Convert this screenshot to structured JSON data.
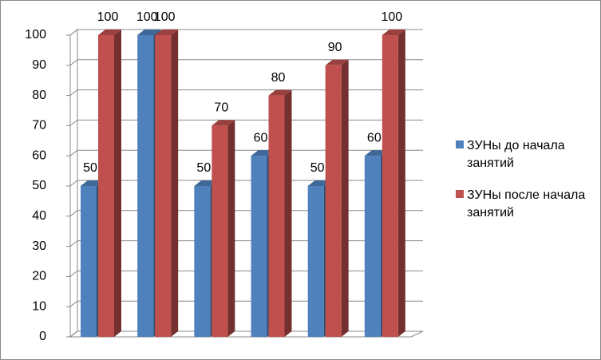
{
  "chart_data": {
    "type": "bar3d",
    "categories": [
      null,
      null,
      null,
      null,
      null,
      null
    ],
    "series": [
      {
        "name": "ЗУНы до начала занятий",
        "color": "#4f81bd",
        "values": [
          50,
          100,
          50,
          60,
          50,
          60
        ]
      },
      {
        "name": "ЗУНы после начала занятий",
        "color": "#c0504d",
        "values": [
          100,
          100,
          70,
          80,
          90,
          100
        ]
      }
    ],
    "ylim": [
      0,
      100
    ],
    "yticks": [
      0,
      10,
      20,
      30,
      40,
      50,
      60,
      70,
      80,
      90,
      100
    ],
    "grid": true,
    "legend": "right",
    "data_labels": true
  }
}
